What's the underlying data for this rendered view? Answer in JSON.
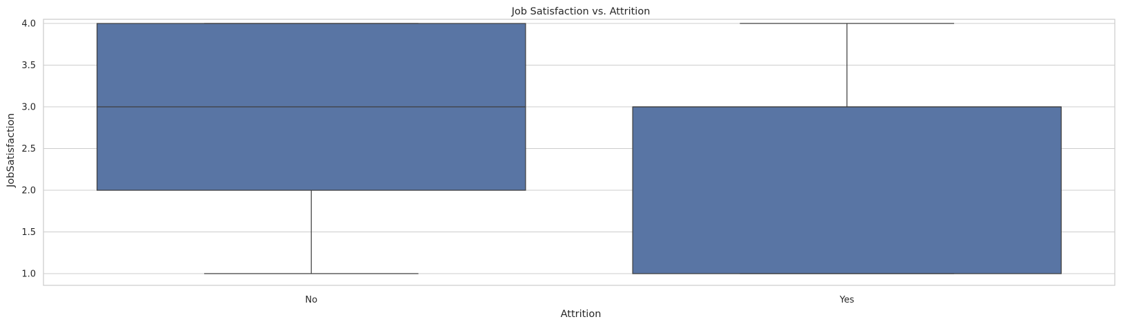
{
  "chart_data": {
    "type": "box",
    "title": "Job Satisfaction vs. Attrition",
    "xlabel": "Attrition",
    "ylabel": "JobSatisfaction",
    "categories": [
      "No",
      "Yes"
    ],
    "boxes": [
      {
        "category": "No",
        "whislo": 1.0,
        "q1": 2.0,
        "median": 3.0,
        "q3": 4.0,
        "whishi": 4.0
      },
      {
        "category": "Yes",
        "whislo": 1.0,
        "q1": 1.0,
        "median": 3.0,
        "q3": 3.0,
        "whishi": 4.0
      }
    ],
    "ylim": [
      0.86,
      4.05
    ],
    "yticks": [
      1.0,
      1.5,
      2.0,
      2.5,
      3.0,
      3.5,
      4.0
    ],
    "ytick_labels": [
      "1.0",
      "1.5",
      "2.0",
      "2.5",
      "3.0",
      "3.5",
      "4.0"
    ],
    "grid": "horizontal",
    "colors": {
      "box_fill": "#5975a4",
      "box_edge": "#3f3f3f",
      "grid": "#cccccc",
      "spine": "#cccccc",
      "background": "#ffffff"
    }
  }
}
